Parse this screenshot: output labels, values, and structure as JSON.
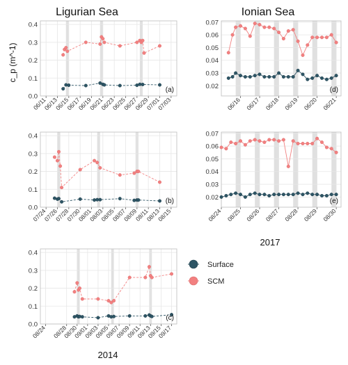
{
  "titles": {
    "left": "Ligurian Sea",
    "right": "Ionian Sea"
  },
  "years": {
    "left": "2014",
    "right": "2017"
  },
  "y_axis_label": "c_p (m^-1)",
  "legend": [
    {
      "name": "Surface",
      "color": "#2e5565"
    },
    {
      "name": "SCM",
      "color": "#f28080"
    }
  ],
  "colors": {
    "surface": "#2e5565",
    "scm": "#f28080",
    "shade": "#d6d6d6",
    "grid": "#e6e6e6"
  },
  "chart_data": [
    {
      "panel": "a",
      "type": "line",
      "title": "",
      "xlim": [
        "2014-06-10",
        "2014-07-04"
      ],
      "ylim": [
        0,
        0.42
      ],
      "yticks": [
        0,
        0.1,
        0.2,
        0.3,
        0.4
      ],
      "xticks": [
        "06/11",
        "06/13",
        "06/15",
        "06/17",
        "06/19",
        "06/21",
        "06/23",
        "06/25",
        "06/27",
        "06/29",
        "07/01",
        "07/03"
      ],
      "shade": [
        [
          "2014-06-14T12:00",
          "2014-06-15"
        ],
        [
          "2014-06-20T12:00",
          "2014-06-21"
        ],
        [
          "2014-06-27T12:00",
          "2014-06-28"
        ]
      ],
      "series": [
        {
          "name": "SCM",
          "x": [
            "2014-06-14",
            "2014-06-14T06:00",
            "2014-06-14T12:00",
            "2014-06-14T18:00",
            "2014-06-18",
            "2014-06-20T12:00",
            "2014-06-20T18:00",
            "2014-06-21",
            "2014-06-21T06:00",
            "2014-06-24",
            "2014-06-27",
            "2014-06-27T12:00",
            "2014-06-27T18:00",
            "2014-06-28",
            "2014-06-28T06:00",
            "2014-07-01"
          ],
          "values": [
            0.23,
            0.26,
            0.27,
            0.25,
            0.3,
            0.29,
            0.33,
            0.32,
            0.3,
            0.28,
            0.3,
            0.31,
            0.3,
            0.31,
            0.24,
            0.28
          ]
        },
        {
          "name": "Surface",
          "x": [
            "2014-06-14",
            "2014-06-14T12:00",
            "2014-06-15",
            "2014-06-18",
            "2014-06-20T12:00",
            "2014-06-21",
            "2014-06-21T06:00",
            "2014-06-24",
            "2014-06-27",
            "2014-06-27T12:00",
            "2014-06-28",
            "2014-07-01"
          ],
          "values": [
            0.04,
            0.062,
            0.06,
            0.058,
            0.072,
            0.065,
            0.062,
            0.058,
            0.06,
            0.065,
            0.064,
            0.062
          ]
        }
      ]
    },
    {
      "panel": "b",
      "type": "line",
      "title": "",
      "xlim": [
        "2014-07-23",
        "2014-08-16"
      ],
      "ylim": [
        0,
        0.42
      ],
      "yticks": [
        0,
        0.1,
        0.2,
        0.3,
        0.4
      ],
      "xticks": [
        "07/24",
        "07/26",
        "07/28",
        "07/30",
        "08/01",
        "08/03",
        "08/05",
        "08/07",
        "08/09",
        "08/11",
        "08/13",
        "08/15"
      ],
      "shade": [
        [
          "2014-07-26",
          "2014-07-26T12:00"
        ],
        [
          "2014-08-02",
          "2014-08-02T12:00"
        ],
        [
          "2014-08-08T18:00",
          "2014-08-09T06:00"
        ]
      ],
      "series": [
        {
          "name": "SCM",
          "x": [
            "2014-07-25T12:00",
            "2014-07-26",
            "2014-07-26T06:00",
            "2014-07-26T12:00",
            "2014-07-26T18:00",
            "2014-07-30",
            "2014-08-01T12:00",
            "2014-08-02",
            "2014-08-02T12:00",
            "2014-08-06",
            "2014-08-08T12:00",
            "2014-08-09",
            "2014-08-09T06:00",
            "2014-08-13"
          ],
          "values": [
            0.28,
            0.26,
            0.31,
            0.23,
            0.11,
            0.21,
            0.26,
            0.25,
            0.22,
            0.18,
            0.19,
            0.2,
            0.2,
            0.14
          ]
        },
        {
          "name": "Surface",
          "x": [
            "2014-07-25T12:00",
            "2014-07-26",
            "2014-07-26T06:00",
            "2014-07-26T18:00",
            "2014-07-30",
            "2014-08-01T12:00",
            "2014-08-02",
            "2014-08-02T12:00",
            "2014-08-06",
            "2014-08-08T12:00",
            "2014-08-09",
            "2014-08-09T06:00",
            "2014-08-13"
          ],
          "values": [
            0.05,
            0.045,
            0.048,
            0.03,
            0.045,
            0.04,
            0.042,
            0.042,
            0.048,
            0.038,
            0.04,
            0.04,
            0.035
          ]
        }
      ]
    },
    {
      "panel": "c",
      "type": "line",
      "title": "",
      "xlim": [
        "2014-08-23",
        "2014-09-18"
      ],
      "ylim": [
        0,
        0.42
      ],
      "yticks": [
        0,
        0.1,
        0.2,
        0.3,
        0.4
      ],
      "xticks": [
        "08/24",
        "08/28",
        "08/30",
        "09/01",
        "09/03",
        "09/05",
        "09/07",
        "09/09",
        "09/11",
        "09/13",
        "09/15",
        "09/17"
      ],
      "shade": [
        [
          "2014-08-30",
          "2014-08-30T12:00"
        ],
        [
          "2014-09-05T12:00",
          "2014-09-06"
        ],
        [
          "2014-09-12T18:00",
          "2014-09-13T06:00"
        ]
      ],
      "series": [
        {
          "name": "SCM",
          "x": [
            "2014-08-29T12:00",
            "2014-08-30",
            "2014-08-30T06:00",
            "2014-08-30T12:00",
            "2014-08-31",
            "2014-09-03",
            "2014-09-05",
            "2014-09-05T12:00",
            "2014-09-06",
            "2014-09-09",
            "2014-09-12",
            "2014-09-12T18:00",
            "2014-09-13",
            "2014-09-13T06:00",
            "2014-09-17"
          ],
          "values": [
            0.18,
            0.23,
            0.19,
            0.2,
            0.14,
            0.14,
            0.13,
            0.12,
            0.13,
            0.26,
            0.26,
            0.32,
            0.27,
            0.26,
            0.28
          ]
        },
        {
          "name": "Surface",
          "x": [
            "2014-08-29T12:00",
            "2014-08-30",
            "2014-08-30T06:00",
            "2014-08-30T12:00",
            "2014-08-31",
            "2014-09-03",
            "2014-09-05",
            "2014-09-05T12:00",
            "2014-09-06",
            "2014-09-09",
            "2014-09-12",
            "2014-09-12T18:00",
            "2014-09-13",
            "2014-09-13T06:00",
            "2014-09-17"
          ],
          "values": [
            0.04,
            0.045,
            0.04,
            0.042,
            0.04,
            0.035,
            0.045,
            0.04,
            0.042,
            0.045,
            0.045,
            0.05,
            0.045,
            0.042,
            0.052
          ]
        }
      ]
    },
    {
      "panel": "d",
      "type": "line",
      "title": "",
      "xlim": [
        "2017-06-15",
        "2017-06-21T06:00"
      ],
      "ylim": [
        0.012,
        0.071
      ],
      "yticks": [
        0.02,
        0.03,
        0.04,
        0.05,
        0.06,
        0.07
      ],
      "xticks": [
        "06/16",
        "06/17",
        "06/18",
        "06/19",
        "06/20",
        "06/21"
      ],
      "shade": [
        [
          "2017-06-15T18:00",
          "2017-06-16"
        ],
        [
          "2017-06-16T18:00",
          "2017-06-17"
        ],
        [
          "2017-06-17T18:00",
          "2017-06-18"
        ],
        [
          "2017-06-18T18:00",
          "2017-06-19"
        ],
        [
          "2017-06-19T18:00",
          "2017-06-20"
        ],
        [
          "2017-06-20T18:00",
          "2017-06-21"
        ]
      ],
      "series": [
        {
          "name": "SCM",
          "x": [
            "2017-06-15T09:00",
            "2017-06-15T14:00",
            "2017-06-15T18:00",
            "2017-06-16T00:00",
            "2017-06-16T06:00",
            "2017-06-16T12:00",
            "2017-06-16T18:00",
            "2017-06-17T00:00",
            "2017-06-17T06:00",
            "2017-06-17T12:00",
            "2017-06-17T18:00",
            "2017-06-18T00:00",
            "2017-06-18T06:00",
            "2017-06-18T12:00",
            "2017-06-18T18:00",
            "2017-06-19T00:00",
            "2017-06-19T06:00",
            "2017-06-19T12:00",
            "2017-06-19T18:00",
            "2017-06-20T00:00",
            "2017-06-20T06:00",
            "2017-06-20T12:00",
            "2017-06-20T18:00",
            "2017-06-21T00:00"
          ],
          "values": [
            0.046,
            0.06,
            0.066,
            0.067,
            0.065,
            0.059,
            0.069,
            0.068,
            0.066,
            0.066,
            0.065,
            0.062,
            0.057,
            0.063,
            0.064,
            0.055,
            0.044,
            0.052,
            0.058,
            0.058,
            0.058,
            0.058,
            0.06,
            0.054
          ]
        },
        {
          "name": "Surface",
          "x": [
            "2017-06-15T09:00",
            "2017-06-15T14:00",
            "2017-06-15T18:00",
            "2017-06-16T00:00",
            "2017-06-16T06:00",
            "2017-06-16T12:00",
            "2017-06-16T18:00",
            "2017-06-17T00:00",
            "2017-06-17T06:00",
            "2017-06-17T12:00",
            "2017-06-17T18:00",
            "2017-06-18T00:00",
            "2017-06-18T06:00",
            "2017-06-18T12:00",
            "2017-06-18T18:00",
            "2017-06-19T00:00",
            "2017-06-19T06:00",
            "2017-06-19T12:00",
            "2017-06-19T18:00",
            "2017-06-20T00:00",
            "2017-06-20T06:00",
            "2017-06-20T12:00",
            "2017-06-20T18:00",
            "2017-06-21T00:00"
          ],
          "values": [
            0.026,
            0.027,
            0.03,
            0.028,
            0.027,
            0.027,
            0.028,
            0.029,
            0.027,
            0.027,
            0.027,
            0.03,
            0.027,
            0.027,
            0.027,
            0.032,
            0.029,
            0.025,
            0.026,
            0.028,
            0.026,
            0.025,
            0.026,
            0.028
          ]
        }
      ]
    },
    {
      "panel": "e",
      "type": "line",
      "title": "",
      "xlim": [
        "2017-08-24",
        "2017-08-30T06:00"
      ],
      "ylim": [
        0.012,
        0.071
      ],
      "yticks": [
        0.02,
        0.03,
        0.04,
        0.05,
        0.06,
        0.07
      ],
      "xticks": [
        "08/24",
        "08/25",
        "08/26",
        "08/27",
        "08/28",
        "08/29",
        "08/30"
      ],
      "shade": [
        [
          "2017-08-24T18:00",
          "2017-08-25"
        ],
        [
          "2017-08-25T18:00",
          "2017-08-26"
        ],
        [
          "2017-08-26T18:00",
          "2017-08-27"
        ],
        [
          "2017-08-27T18:00",
          "2017-08-28"
        ],
        [
          "2017-08-28T18:00",
          "2017-08-29"
        ],
        [
          "2017-08-29T18:00",
          "2017-08-30"
        ]
      ],
      "series": [
        {
          "name": "SCM",
          "x": [
            "2017-08-24T00:00",
            "2017-08-24T06:00",
            "2017-08-24T12:00",
            "2017-08-24T18:00",
            "2017-08-25T00:00",
            "2017-08-25T06:00",
            "2017-08-25T12:00",
            "2017-08-25T18:00",
            "2017-08-26T00:00",
            "2017-08-26T06:00",
            "2017-08-26T12:00",
            "2017-08-26T18:00",
            "2017-08-27T00:00",
            "2017-08-27T06:00",
            "2017-08-27T12:00",
            "2017-08-27T18:00",
            "2017-08-28T00:00",
            "2017-08-28T06:00",
            "2017-08-28T12:00",
            "2017-08-28T18:00",
            "2017-08-29T00:00",
            "2017-08-29T06:00",
            "2017-08-29T12:00",
            "2017-08-29T18:00",
            "2017-08-30T00:00"
          ],
          "values": [
            0.059,
            0.058,
            0.063,
            0.062,
            0.064,
            0.061,
            0.064,
            0.065,
            0.064,
            0.063,
            0.065,
            0.065,
            0.064,
            0.065,
            0.044,
            0.064,
            0.062,
            0.062,
            0.062,
            0.062,
            0.066,
            0.063,
            0.059,
            0.058,
            0.055
          ]
        },
        {
          "name": "Surface",
          "x": [
            "2017-08-24T00:00",
            "2017-08-24T06:00",
            "2017-08-24T12:00",
            "2017-08-24T18:00",
            "2017-08-25T00:00",
            "2017-08-25T06:00",
            "2017-08-25T12:00",
            "2017-08-25T18:00",
            "2017-08-26T00:00",
            "2017-08-26T06:00",
            "2017-08-26T12:00",
            "2017-08-26T18:00",
            "2017-08-27T00:00",
            "2017-08-27T06:00",
            "2017-08-27T12:00",
            "2017-08-27T18:00",
            "2017-08-28T00:00",
            "2017-08-28T06:00",
            "2017-08-28T12:00",
            "2017-08-28T18:00",
            "2017-08-29T00:00",
            "2017-08-29T06:00",
            "2017-08-29T12:00",
            "2017-08-29T18:00",
            "2017-08-30T00:00"
          ],
          "values": [
            0.02,
            0.021,
            0.022,
            0.023,
            0.022,
            0.02,
            0.022,
            0.023,
            0.022,
            0.022,
            0.021,
            0.022,
            0.022,
            0.022,
            0.022,
            0.022,
            0.023,
            0.022,
            0.023,
            0.022,
            0.022,
            0.021,
            0.021,
            0.022,
            0.022
          ]
        }
      ]
    }
  ]
}
